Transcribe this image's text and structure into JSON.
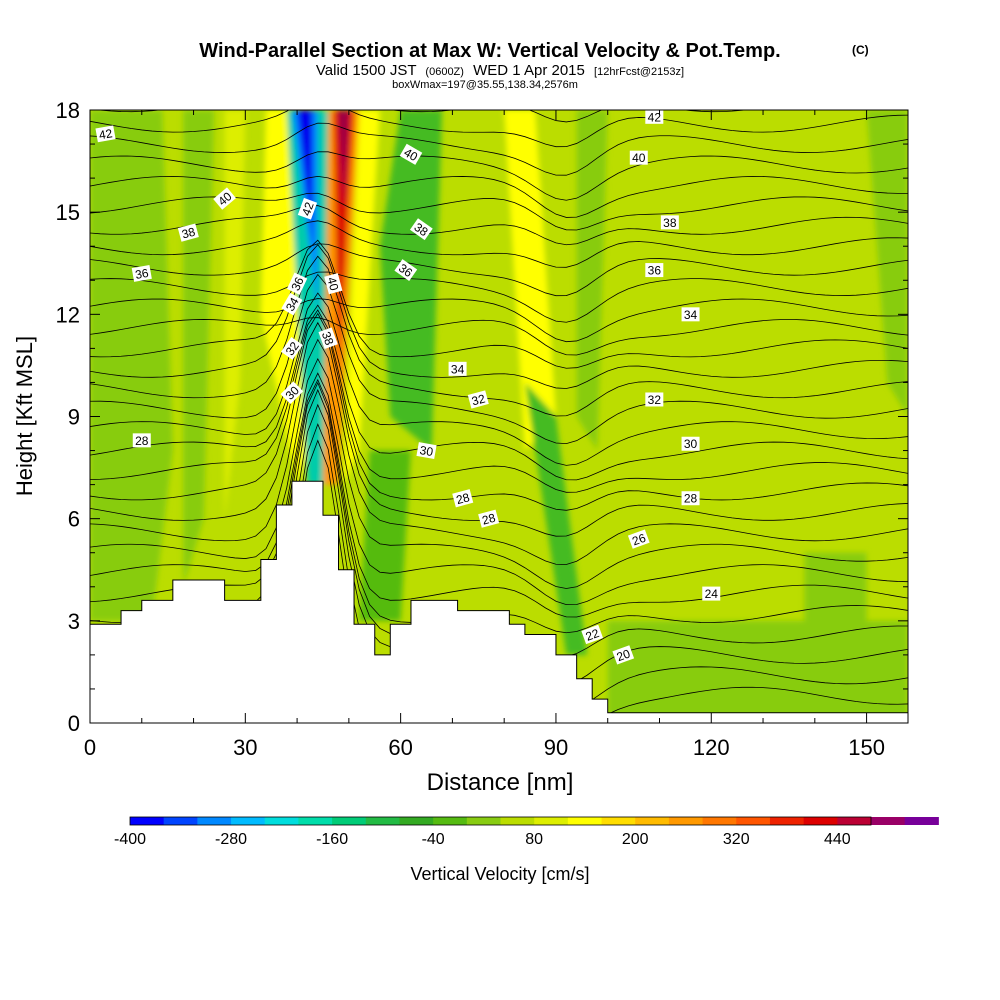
{
  "chart_data": {
    "type": "heatmap",
    "title": "Wind-Parallel Section at Max W: Vertical Velocity & Pot.Temp.",
    "title_mark": "(C)",
    "subtitle_parts": [
      "Valid 1500 JST",
      "(0600Z)",
      "WED 1 Apr 2015",
      "[12hrFcst@2153z]"
    ],
    "subtitle2": "boxWmax=197@35.55,138.34,2576m",
    "xlabel": "Distance [nm]",
    "ylabel": "Height [Kft MSL]",
    "xlim": [
      0,
      158
    ],
    "ylim": [
      0,
      18
    ],
    "x_ticks": [
      "0",
      "30",
      "60",
      "90",
      "120",
      "150"
    ],
    "x_tick_values": [
      0,
      30,
      60,
      90,
      120,
      150
    ],
    "y_ticks": [
      "0",
      "3",
      "6",
      "9",
      "12",
      "15",
      "18"
    ],
    "y_tick_values": [
      0,
      3,
      6,
      9,
      12,
      15,
      18
    ],
    "colorbar": {
      "label": "Vertical Velocity [cm/s]",
      "min": -400,
      "max": 480,
      "step": 40,
      "tick_labels": [
        "-400",
        "-280",
        "-160",
        "-40",
        "80",
        "200",
        "320",
        "440"
      ],
      "tick_values": [
        -400,
        -280,
        -160,
        -40,
        80,
        200,
        320,
        440
      ],
      "colors": [
        "#0000ff",
        "#0044ff",
        "#0088ff",
        "#00bbff",
        "#00dddd",
        "#00ddaa",
        "#00cc77",
        "#22bb44",
        "#33aa22",
        "#55bb11",
        "#88cc11",
        "#bbdd00",
        "#ddee00",
        "#ffff00",
        "#ffdd00",
        "#ffbb00",
        "#ff9900",
        "#ff7700",
        "#ff5500",
        "#ee2200",
        "#dd0000",
        "#bb0033",
        "#990066",
        "#770099"
      ]
    },
    "terrain": [
      [
        0,
        2.9
      ],
      [
        6,
        2.9
      ],
      [
        6,
        3.3
      ],
      [
        10,
        3.3
      ],
      [
        10,
        3.6
      ],
      [
        16,
        3.6
      ],
      [
        16,
        4.2
      ],
      [
        26,
        4.2
      ],
      [
        26,
        3.6
      ],
      [
        33,
        3.6
      ],
      [
        33,
        4.8
      ],
      [
        36,
        4.8
      ],
      [
        36,
        6.4
      ],
      [
        39,
        6.4
      ],
      [
        39,
        7.1
      ],
      [
        45,
        7.1
      ],
      [
        45,
        6.1
      ],
      [
        48,
        6.1
      ],
      [
        48,
        4.5
      ],
      [
        51,
        4.5
      ],
      [
        51,
        2.9
      ],
      [
        55,
        2.9
      ],
      [
        55,
        2.0
      ],
      [
        58,
        2.0
      ],
      [
        58,
        2.9
      ],
      [
        62,
        2.9
      ],
      [
        62,
        3.6
      ],
      [
        71,
        3.6
      ],
      [
        71,
        3.3
      ],
      [
        81,
        3.3
      ],
      [
        81,
        2.9
      ],
      [
        84,
        2.9
      ],
      [
        84,
        2.6
      ],
      [
        90,
        2.6
      ],
      [
        90,
        2.0
      ],
      [
        94,
        2.0
      ],
      [
        94,
        1.3
      ],
      [
        97,
        1.3
      ],
      [
        97,
        0.7
      ],
      [
        100,
        0.7
      ],
      [
        100,
        0.3
      ],
      [
        158,
        0.3
      ]
    ],
    "theta_contour_labels": [
      {
        "text": "42",
        "x": 3,
        "y": 17.3,
        "angle": -10
      },
      {
        "text": "40",
        "x": 26,
        "y": 15.4,
        "angle": -40
      },
      {
        "text": "38",
        "x": 19,
        "y": 14.4,
        "angle": -15
      },
      {
        "text": "36",
        "x": 10,
        "y": 13.2,
        "angle": -10
      },
      {
        "text": "28",
        "x": 10,
        "y": 8.3,
        "angle": 0
      },
      {
        "text": "42",
        "x": 42,
        "y": 15.1,
        "angle": -70
      },
      {
        "text": "36",
        "x": 40,
        "y": 12.9,
        "angle": -65
      },
      {
        "text": "34",
        "x": 39,
        "y": 12.3,
        "angle": -60
      },
      {
        "text": "32",
        "x": 39,
        "y": 11.0,
        "angle": -55
      },
      {
        "text": "30",
        "x": 39,
        "y": 9.7,
        "angle": -45
      },
      {
        "text": "40",
        "x": 47,
        "y": 12.9,
        "angle": 75
      },
      {
        "text": "38",
        "x": 46,
        "y": 11.3,
        "angle": 70
      },
      {
        "text": "40",
        "x": 62,
        "y": 16.7,
        "angle": 30
      },
      {
        "text": "38",
        "x": 64,
        "y": 14.5,
        "angle": 35
      },
      {
        "text": "36",
        "x": 61,
        "y": 13.3,
        "angle": 35
      },
      {
        "text": "34",
        "x": 71,
        "y": 10.4,
        "angle": 0
      },
      {
        "text": "32",
        "x": 75,
        "y": 9.5,
        "angle": -15
      },
      {
        "text": "30",
        "x": 65,
        "y": 8.0,
        "angle": 10
      },
      {
        "text": "28",
        "x": 72,
        "y": 6.6,
        "angle": -15
      },
      {
        "text": "28",
        "x": 77,
        "y": 6.0,
        "angle": -15
      },
      {
        "text": "42",
        "x": 109,
        "y": 17.8,
        "angle": 0
      },
      {
        "text": "40",
        "x": 106,
        "y": 16.6,
        "angle": 0
      },
      {
        "text": "38",
        "x": 112,
        "y": 14.7,
        "angle": 0
      },
      {
        "text": "36",
        "x": 109,
        "y": 13.3,
        "angle": 0
      },
      {
        "text": "34",
        "x": 116,
        "y": 12.0,
        "angle": 0
      },
      {
        "text": "32",
        "x": 109,
        "y": 9.5,
        "angle": 0
      },
      {
        "text": "30",
        "x": 116,
        "y": 8.2,
        "angle": 0
      },
      {
        "text": "28",
        "x": 116,
        "y": 6.6,
        "angle": 0
      },
      {
        "text": "26",
        "x": 106,
        "y": 5.4,
        "angle": -20
      },
      {
        "text": "24",
        "x": 120,
        "y": 3.8,
        "angle": 0
      },
      {
        "text": "22",
        "x": 97,
        "y": 2.6,
        "angle": -20
      },
      {
        "text": "20",
        "x": 103,
        "y": 2.0,
        "angle": -20
      }
    ]
  }
}
